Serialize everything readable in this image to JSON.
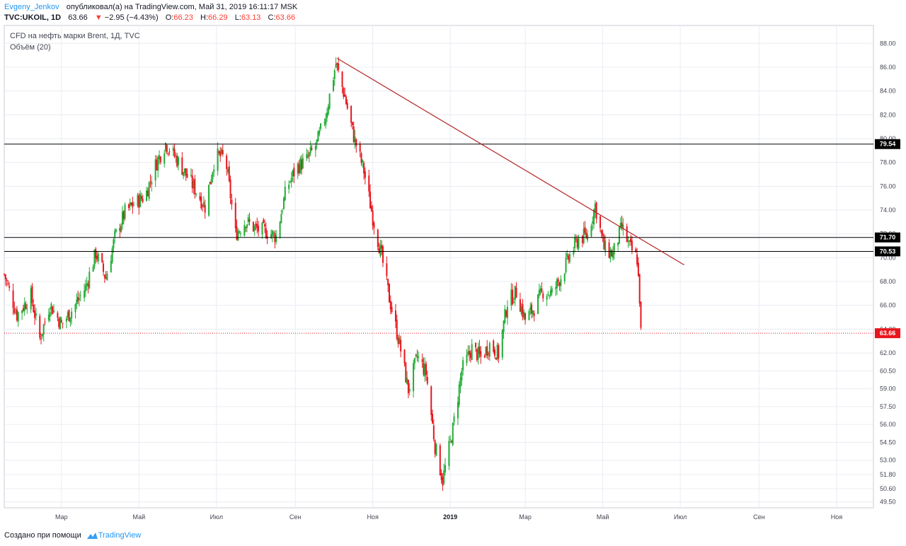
{
  "header": {
    "author": "Evgeny_Jenkov",
    "published_text": "опубликовал(а) на TradingView.com, Май 31, 2019 16:11:17 MSK",
    "ticker": "TVC:UKOIL, 1D",
    "last": "63.66",
    "change_arrow": "▼",
    "change": "−2.95 (−4.43%)",
    "o_label": "O:",
    "o_value": "66.23",
    "h_label": "H:",
    "h_value": "66.29",
    "l_label": "L:",
    "l_value": "63.13",
    "c_label": "C:",
    "c_value": "63.66"
  },
  "legend": {
    "title": "CFD на нефть марки Brent, 1Д, TVC",
    "volume": "Объём (20)"
  },
  "footer": {
    "created_with": "Создано при помощи",
    "brand": "TradingView",
    "logo_icon": "tradingview-cloud-icon"
  },
  "colors": {
    "up": "#26a69a",
    "up_bar": "#22ab35",
    "down": "#e8151d",
    "trendline": "#b22222",
    "level_line": "#000000",
    "price_line": "#e8151d",
    "grid": "#e9ecf2",
    "axis_text": "#434651"
  },
  "chart_data": {
    "type": "candlestick",
    "title": "CFD на нефть марки Brent, 1Д, TVC",
    "symbol": "TVC:UKOIL",
    "timeframe": "1D",
    "last_price": 63.66,
    "ohlc_last": {
      "open": 66.23,
      "high": 66.29,
      "low": 63.13,
      "close": 63.66
    },
    "y_ticks": [
      "88.00",
      "86.00",
      "84.00",
      "82.00",
      "80.00",
      "78.00",
      "76.00",
      "74.00",
      "72.00",
      "70.00",
      "68.00",
      "66.00",
      "64.00",
      "62.00",
      "60.50",
      "59.00",
      "57.50",
      "56.00",
      "54.50",
      "53.00",
      "51.80",
      "50.60",
      "49.50"
    ],
    "ylim": [
      49.0,
      89.5
    ],
    "x_ticks": [
      "Мар",
      "Май",
      "Июл",
      "Сен",
      "Ноя",
      "2019",
      "Мар",
      "Май",
      "Июл",
      "Сен",
      "Ноя"
    ],
    "x_bold_tick": "2019",
    "x_range": [
      "2018-01-15",
      "2019-11-30"
    ],
    "horizontal_levels": [
      79.54,
      71.7,
      70.53
    ],
    "level_badges": [
      "79.54",
      "71.70",
      "70.53"
    ],
    "price_badge": "63.66",
    "trendline": {
      "from": {
        "date": "2018-10-04",
        "price": 86.74
      },
      "to": {
        "date": "2019-07-04",
        "price": 69.4
      }
    },
    "close_series": [
      {
        "date": "2018-01-15",
        "close": 68.6
      },
      {
        "date": "2018-01-25",
        "close": 65.2
      },
      {
        "date": "2018-02-05",
        "close": 66.8
      },
      {
        "date": "2018-02-12",
        "close": 63.2
      },
      {
        "date": "2018-02-20",
        "close": 66.1
      },
      {
        "date": "2018-03-01",
        "close": 64.4
      },
      {
        "date": "2018-03-10",
        "close": 65.7
      },
      {
        "date": "2018-03-20",
        "close": 67.5
      },
      {
        "date": "2018-03-28",
        "close": 70.4
      },
      {
        "date": "2018-04-05",
        "close": 68.3
      },
      {
        "date": "2018-04-12",
        "close": 71.7
      },
      {
        "date": "2018-04-20",
        "close": 73.8
      },
      {
        "date": "2018-04-28",
        "close": 74.6
      },
      {
        "date": "2018-05-06",
        "close": 75.2
      },
      {
        "date": "2018-05-14",
        "close": 77.8
      },
      {
        "date": "2018-05-22",
        "close": 79.6
      },
      {
        "date": "2018-05-30",
        "close": 78.4
      },
      {
        "date": "2018-06-07",
        "close": 77.0
      },
      {
        "date": "2018-06-15",
        "close": 75.6
      },
      {
        "date": "2018-06-22",
        "close": 74.3
      },
      {
        "date": "2018-06-30",
        "close": 78.6
      },
      {
        "date": "2018-07-08",
        "close": 78.4
      },
      {
        "date": "2018-07-16",
        "close": 72.0
      },
      {
        "date": "2018-07-24",
        "close": 73.1
      },
      {
        "date": "2018-08-01",
        "close": 72.4
      },
      {
        "date": "2018-08-09",
        "close": 72.2
      },
      {
        "date": "2018-08-17",
        "close": 71.8
      },
      {
        "date": "2018-08-25",
        "close": 75.8
      },
      {
        "date": "2018-09-02",
        "close": 77.6
      },
      {
        "date": "2018-09-10",
        "close": 78.2
      },
      {
        "date": "2018-09-18",
        "close": 79.6
      },
      {
        "date": "2018-09-25",
        "close": 82.0
      },
      {
        "date": "2018-10-03",
        "close": 86.3
      },
      {
        "date": "2018-10-10",
        "close": 83.5
      },
      {
        "date": "2018-10-17",
        "close": 80.2
      },
      {
        "date": "2018-10-25",
        "close": 77.3
      },
      {
        "date": "2018-11-01",
        "close": 73.4
      },
      {
        "date": "2018-11-08",
        "close": 70.1
      },
      {
        "date": "2018-11-14",
        "close": 66.6
      },
      {
        "date": "2018-11-22",
        "close": 62.8
      },
      {
        "date": "2018-11-29",
        "close": 58.9
      },
      {
        "date": "2018-12-06",
        "close": 61.7
      },
      {
        "date": "2018-12-13",
        "close": 60.3
      },
      {
        "date": "2018-12-20",
        "close": 54.2
      },
      {
        "date": "2018-12-26",
        "close": 51.3
      },
      {
        "date": "2019-01-03",
        "close": 55.6
      },
      {
        "date": "2019-01-10",
        "close": 60.5
      },
      {
        "date": "2019-01-18",
        "close": 62.4
      },
      {
        "date": "2019-01-25",
        "close": 61.6
      },
      {
        "date": "2019-02-01",
        "close": 62.7
      },
      {
        "date": "2019-02-08",
        "close": 61.9
      },
      {
        "date": "2019-02-15",
        "close": 66.3
      },
      {
        "date": "2019-02-22",
        "close": 67.1
      },
      {
        "date": "2019-03-01",
        "close": 64.8
      },
      {
        "date": "2019-03-08",
        "close": 65.8
      },
      {
        "date": "2019-03-15",
        "close": 67.2
      },
      {
        "date": "2019-03-22",
        "close": 67.0
      },
      {
        "date": "2019-03-29",
        "close": 68.4
      },
      {
        "date": "2019-04-05",
        "close": 70.2
      },
      {
        "date": "2019-04-12",
        "close": 71.6
      },
      {
        "date": "2019-04-19",
        "close": 71.9
      },
      {
        "date": "2019-04-25",
        "close": 74.4
      },
      {
        "date": "2019-05-02",
        "close": 70.8
      },
      {
        "date": "2019-05-09",
        "close": 70.3
      },
      {
        "date": "2019-05-16",
        "close": 72.6
      },
      {
        "date": "2019-05-22",
        "close": 70.9
      },
      {
        "date": "2019-05-28",
        "close": 69.9
      },
      {
        "date": "2019-05-30",
        "close": 66.6
      },
      {
        "date": "2019-05-31",
        "close": 63.66
      }
    ]
  }
}
